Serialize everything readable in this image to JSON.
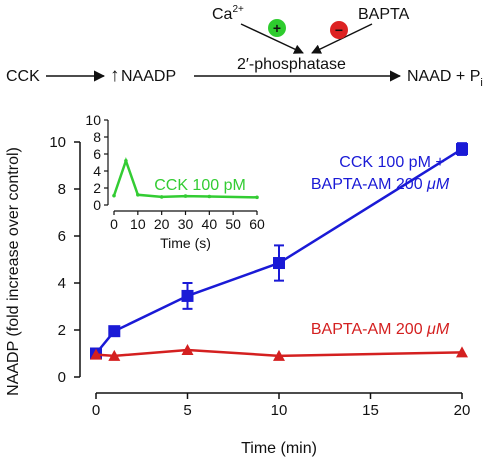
{
  "pathway": {
    "cck": "CCK",
    "up_arrow": "↑",
    "naadp": "NAADP",
    "enzyme": "2′-phosphatase",
    "product": "NAAD + P",
    "product_sub": "i",
    "ca": "Ca",
    "ca_sup": "2+",
    "plus_sign": "+",
    "bapta": "BAPTA",
    "minus_sign": "−",
    "colors": {
      "activator": "#2ecc2e",
      "inhibitor": "#dd2222"
    }
  },
  "chart_data": [
    {
      "type": "line",
      "xlabel": "Time (min)",
      "ylabel": "NAADP (fold increase over control)",
      "xlim": [
        0,
        20
      ],
      "ylim": [
        0,
        10
      ],
      "xticks": [
        0,
        5,
        10,
        15,
        20
      ],
      "yticks": [
        0,
        2,
        4,
        6,
        8,
        10
      ],
      "grid": false,
      "series": [
        {
          "name_line1": "CCK 100 pM +",
          "name_line2_prefix": "BAPTA-AM 200 ",
          "name_unit": "μM",
          "color": "#1a1ad6",
          "marker": "square",
          "points": [
            {
              "x": 0,
              "y": 1.0,
              "err": 0.1
            },
            {
              "x": 1,
              "y": 1.95,
              "err": 0.1
            },
            {
              "x": 5,
              "y": 3.45,
              "err": 0.55
            },
            {
              "x": 10,
              "y": 4.85,
              "err": 0.75
            },
            {
              "x": 20,
              "y": 9.7,
              "err": 0.25
            }
          ]
        },
        {
          "name_prefix": "BAPTA-AM 200 ",
          "name_unit": "μM",
          "color": "#d42020",
          "marker": "triangle",
          "points": [
            {
              "x": 0,
              "y": 0.95
            },
            {
              "x": 1,
              "y": 0.9
            },
            {
              "x": 5,
              "y": 1.15
            },
            {
              "x": 10,
              "y": 0.9
            },
            {
              "x": 20,
              "y": 1.05
            }
          ]
        }
      ]
    },
    {
      "type": "line",
      "xlabel": "Time (s)",
      "xlim": [
        0,
        60
      ],
      "ylim": [
        0,
        10
      ],
      "xticks": [
        0,
        10,
        20,
        30,
        40,
        50,
        60
      ],
      "yticks": [
        0,
        2,
        4,
        6,
        8,
        10
      ],
      "grid": false,
      "series": [
        {
          "name": "CCK 100 pM",
          "color": "#33cc33",
          "x": [
            0,
            5,
            10,
            20,
            30,
            40,
            60
          ],
          "y": [
            1.1,
            5.2,
            1.2,
            0.95,
            1.05,
            1.0,
            0.9
          ]
        }
      ]
    }
  ]
}
